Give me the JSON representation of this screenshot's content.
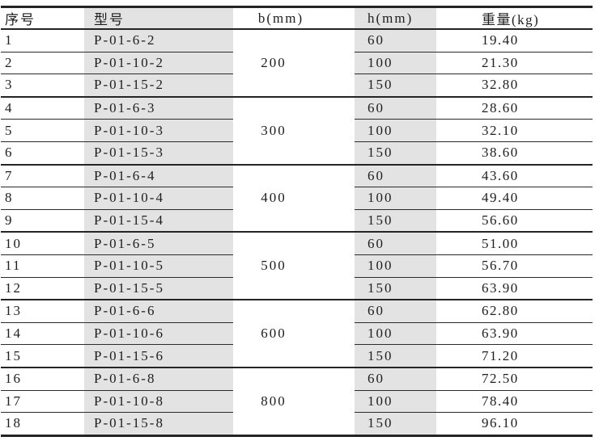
{
  "table": {
    "headers": [
      "序号",
      "型号",
      "b(mm)",
      "h(mm)",
      "重量(kg)"
    ],
    "groups": [
      {
        "b": "200",
        "rows": [
          {
            "no": "1",
            "model": "P-01-6-2",
            "h": "60",
            "weight": "19.40"
          },
          {
            "no": "2",
            "model": "P-01-10-2",
            "h": "100",
            "weight": "21.30"
          },
          {
            "no": "3",
            "model": "P-01-15-2",
            "h": "150",
            "weight": "32.80"
          }
        ]
      },
      {
        "b": "300",
        "rows": [
          {
            "no": "4",
            "model": "P-01-6-3",
            "h": "60",
            "weight": "28.60"
          },
          {
            "no": "5",
            "model": "P-01-10-3",
            "h": "100",
            "weight": "32.10"
          },
          {
            "no": "6",
            "model": "P-01-15-3",
            "h": "150",
            "weight": "38.60"
          }
        ]
      },
      {
        "b": "400",
        "rows": [
          {
            "no": "7",
            "model": "P-01-6-4",
            "h": "60",
            "weight": "43.60"
          },
          {
            "no": "8",
            "model": "P-01-10-4",
            "h": "100",
            "weight": "49.40"
          },
          {
            "no": "9",
            "model": "P-01-15-4",
            "h": "150",
            "weight": "56.60"
          }
        ]
      },
      {
        "b": "500",
        "rows": [
          {
            "no": "10",
            "model": "P-01-6-5",
            "h": "60",
            "weight": "51.00"
          },
          {
            "no": "11",
            "model": "P-01-10-5",
            "h": "100",
            "weight": "56.70"
          },
          {
            "no": "12",
            "model": "P-01-15-5",
            "h": "150",
            "weight": "63.90"
          }
        ]
      },
      {
        "b": "600",
        "rows": [
          {
            "no": "13",
            "model": "P-01-6-6",
            "h": "60",
            "weight": "62.80"
          },
          {
            "no": "14",
            "model": "P-01-10-6",
            "h": "100",
            "weight": "63.90"
          },
          {
            "no": "15",
            "model": "P-01-15-6",
            "h": "150",
            "weight": "71.20"
          }
        ]
      },
      {
        "b": "800",
        "rows": [
          {
            "no": "16",
            "model": "P-01-6-8",
            "h": "60",
            "weight": "72.50"
          },
          {
            "no": "17",
            "model": "P-01-10-8",
            "h": "100",
            "weight": "78.40"
          },
          {
            "no": "18",
            "model": "P-01-15-8",
            "h": "150",
            "weight": "96.10"
          }
        ]
      }
    ]
  },
  "colors": {
    "shaded_column_bg": "#e3e3e3",
    "rule_line": "#242424",
    "text": "#1e1e1e",
    "background": "#ffffff"
  }
}
